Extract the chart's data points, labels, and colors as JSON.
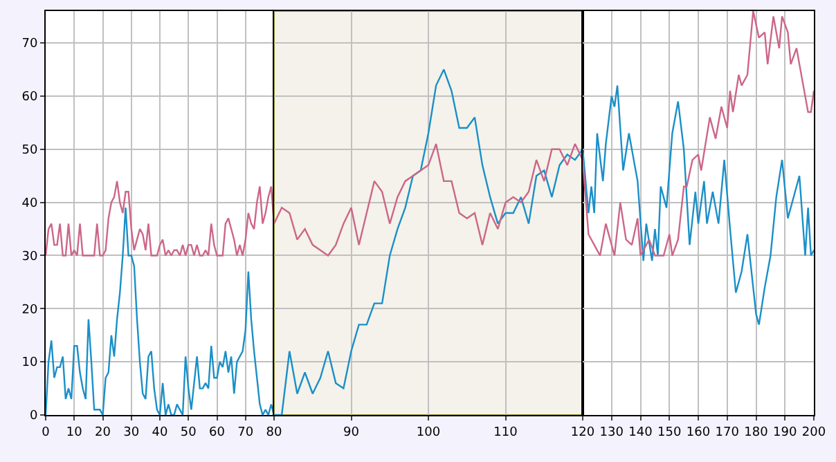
{
  "chart_data": [
    {
      "type": "line",
      "xlim": [
        0,
        80
      ],
      "ylim": [
        0,
        76
      ],
      "xticks": [
        0,
        10,
        20,
        30,
        40,
        50,
        60,
        70,
        80
      ],
      "yticks": [
        0,
        10,
        20,
        30,
        40,
        50,
        60,
        70
      ],
      "grid": true,
      "marker": "none",
      "line_style": "solid",
      "series": [
        {
          "color": "#1a8fc8",
          "x": [
            0,
            1,
            2,
            3,
            4,
            5,
            6,
            7,
            8,
            9,
            10,
            11,
            12,
            13,
            14,
            15,
            16,
            17,
            18,
            19,
            20,
            21,
            22,
            23,
            24,
            25,
            26,
            27,
            28,
            29,
            30,
            31,
            32,
            33,
            34,
            35,
            36,
            37,
            38,
            39,
            40,
            41,
            42,
            43,
            44,
            45,
            46,
            47,
            48,
            49,
            50,
            51,
            52,
            53,
            54,
            55,
            56,
            57,
            58,
            59,
            60,
            61,
            62,
            63,
            64,
            65,
            66,
            67,
            68,
            69,
            70,
            71,
            72,
            73,
            74,
            75,
            76,
            77,
            78,
            79,
            80
          ],
          "values": [
            0,
            10,
            14,
            7,
            9,
            9,
            11,
            3,
            5,
            3,
            13,
            13,
            8,
            5,
            3,
            18,
            10,
            1,
            1,
            1,
            0,
            7,
            8,
            15,
            11,
            18,
            23,
            30,
            39,
            30,
            30,
            28,
            18,
            10,
            4,
            3,
            11,
            12,
            5,
            1,
            0,
            6,
            0,
            2,
            0,
            0,
            2,
            1,
            0,
            11,
            5,
            1,
            6,
            11,
            5,
            5,
            6,
            5,
            13,
            7,
            7,
            10,
            9,
            12,
            8,
            11,
            4,
            10,
            11,
            12,
            16,
            27,
            18,
            12,
            7,
            2,
            0,
            1,
            0,
            2,
            0
          ]
        },
        {
          "color": "#cc6688",
          "x": [
            0,
            1,
            2,
            3,
            4,
            5,
            6,
            7,
            8,
            9,
            10,
            11,
            12,
            13,
            14,
            15,
            16,
            17,
            18,
            19,
            20,
            21,
            22,
            23,
            24,
            25,
            26,
            27,
            28,
            29,
            30,
            31,
            32,
            33,
            34,
            35,
            36,
            37,
            38,
            39,
            40,
            41,
            42,
            43,
            44,
            45,
            46,
            47,
            48,
            49,
            50,
            51,
            52,
            53,
            54,
            55,
            56,
            57,
            58,
            59,
            60,
            61,
            62,
            63,
            64,
            65,
            66,
            67,
            68,
            69,
            70,
            71,
            72,
            73,
            74,
            75,
            76,
            77,
            78,
            79,
            80
          ],
          "values": [
            30,
            35,
            36,
            32,
            32,
            36,
            30,
            30,
            36,
            30,
            31,
            30,
            36,
            30,
            30,
            30,
            30,
            30,
            36,
            30,
            30,
            31,
            37,
            40,
            41,
            44,
            40,
            38,
            42,
            42,
            35,
            31,
            33,
            35,
            34,
            31,
            36,
            30,
            30,
            30,
            32,
            33,
            30,
            31,
            30,
            31,
            31,
            30,
            32,
            30,
            32,
            32,
            30,
            32,
            30,
            30,
            31,
            30,
            36,
            32,
            30,
            30,
            30,
            36,
            37,
            35,
            33,
            30,
            32,
            30,
            33,
            38,
            36,
            35,
            40,
            43,
            36,
            38,
            41,
            43,
            36
          ]
        }
      ]
    },
    {
      "type": "line",
      "xlim": [
        80,
        120
      ],
      "ylim": [
        0,
        76
      ],
      "xticks": [
        90,
        100,
        110
      ],
      "yticks": [
        0,
        10,
        20,
        30,
        40,
        50,
        60,
        70
      ],
      "tick_labels": "x",
      "grid": true,
      "marker": "none",
      "line_style": "solid",
      "bands": [
        {
          "axis": "x",
          "from": 80,
          "to": 120,
          "color": "#f4f2ea"
        }
      ],
      "series": [
        {
          "color": "#1a8fc8",
          "x": [
            80,
            81,
            82,
            83,
            84,
            85,
            86,
            87,
            88,
            89,
            90,
            91,
            92,
            93,
            94,
            95,
            96,
            97,
            98,
            99,
            100,
            101,
            102,
            103,
            104,
            105,
            106,
            107,
            108,
            109,
            110,
            111,
            112,
            113,
            114,
            115,
            116,
            117,
            118,
            119,
            120
          ],
          "values": [
            0,
            0,
            12,
            4,
            8,
            4,
            7,
            12,
            6,
            5,
            12,
            17,
            17,
            21,
            21,
            30,
            35,
            39,
            45,
            46,
            53,
            62,
            65,
            61,
            54,
            54,
            56,
            47,
            41,
            36,
            38,
            38,
            41,
            36,
            45,
            46,
            41,
            47,
            49,
            48,
            50
          ]
        },
        {
          "color": "#cc6688",
          "x": [
            80,
            81,
            82,
            83,
            84,
            85,
            86,
            87,
            88,
            89,
            90,
            91,
            92,
            93,
            94,
            95,
            96,
            97,
            98,
            99,
            100,
            101,
            102,
            103,
            104,
            105,
            106,
            107,
            108,
            109,
            110,
            111,
            112,
            113,
            114,
            115,
            116,
            117,
            118,
            119,
            120
          ],
          "values": [
            36,
            39,
            38,
            33,
            35,
            32,
            31,
            30,
            32,
            36,
            39,
            32,
            38,
            44,
            42,
            36,
            41,
            44,
            45,
            46,
            47,
            51,
            44,
            44,
            38,
            37,
            38,
            32,
            38,
            35,
            40,
            41,
            40,
            42,
            48,
            44,
            50,
            50,
            47,
            51,
            48
          ]
        }
      ]
    },
    {
      "type": "line",
      "xlim": [
        120,
        200
      ],
      "ylim": [
        0,
        76
      ],
      "xticks": [
        120,
        130,
        140,
        150,
        160,
        170,
        180,
        190,
        200
      ],
      "yticks": [
        0,
        10,
        20,
        30,
        40,
        50,
        60,
        70
      ],
      "tick_labels": "x",
      "grid": true,
      "marker": "none",
      "line_style": "solid",
      "series": [
        {
          "color": "#1a8fc8",
          "x": [
            120,
            122,
            123,
            124,
            125,
            127,
            128,
            130,
            131,
            132,
            134,
            136,
            138,
            139,
            141,
            142,
            144,
            145,
            146,
            147,
            149,
            151,
            152,
            153,
            155,
            157,
            159,
            160,
            162,
            163,
            165,
            167,
            169,
            171,
            173,
            175,
            177,
            180,
            181,
            183,
            185,
            187,
            189,
            191,
            193,
            195,
            197,
            198,
            199,
            200
          ],
          "values": [
            50,
            38,
            43,
            38,
            53,
            44,
            51,
            60,
            58,
            62,
            46,
            53,
            47,
            44,
            29,
            36,
            29,
            35,
            30,
            43,
            39,
            53,
            56,
            59,
            50,
            32,
            42,
            36,
            44,
            36,
            42,
            36,
            48,
            35,
            23,
            27,
            34,
            19,
            17,
            24,
            30,
            41,
            48,
            37,
            41,
            45,
            30,
            39,
            30,
            31
          ]
        },
        {
          "color": "#cc6688",
          "x": [
            120,
            122,
            124,
            126,
            128,
            131,
            133,
            135,
            137,
            139,
            140,
            143,
            145,
            148,
            150,
            151,
            153,
            155,
            156,
            158,
            160,
            161,
            164,
            166,
            168,
            170,
            171,
            172,
            174,
            175,
            177,
            179,
            181,
            183,
            184,
            186,
            188,
            189,
            191,
            192,
            194,
            196,
            198,
            199,
            200
          ],
          "values": [
            48,
            34,
            32,
            30,
            36,
            30,
            40,
            33,
            32,
            37,
            30,
            33,
            30,
            30,
            34,
            30,
            33,
            43,
            43,
            48,
            49,
            46,
            56,
            52,
            58,
            54,
            61,
            57,
            64,
            62,
            64,
            76,
            71,
            72,
            66,
            75,
            69,
            75,
            72,
            66,
            69,
            63,
            57,
            57,
            61
          ]
        }
      ]
    }
  ]
}
